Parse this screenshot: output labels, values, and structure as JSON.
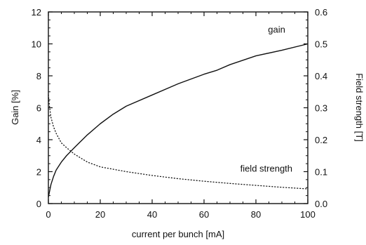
{
  "chart_data": {
    "type": "line",
    "title": "",
    "xlabel": "current per bunch [mA]",
    "ylabel_left": "Gain [%]",
    "ylabel_right": "Field strength [T]",
    "xlim": [
      0,
      100
    ],
    "ylim_left": [
      0,
      12
    ],
    "ylim_right": [
      0,
      0.6
    ],
    "grid": false,
    "x_ticks": [
      "0",
      "20",
      "40",
      "60",
      "80",
      "100"
    ],
    "y_ticks_left": [
      "0",
      "2",
      "4",
      "6",
      "8",
      "10",
      "12"
    ],
    "y_ticks_right": [
      "0.0",
      "0.1",
      "0.2",
      "0.3",
      "0.4",
      "0.5",
      "0.6"
    ],
    "series": [
      {
        "name": "gain",
        "axis": "left",
        "style": "solid",
        "x": [
          0,
          0.5,
          1,
          2,
          3,
          5,
          7,
          10,
          15,
          20,
          25,
          30,
          40,
          50,
          60,
          65,
          70,
          80,
          90,
          100
        ],
        "y": [
          0.4,
          0.8,
          1.2,
          1.7,
          2.1,
          2.6,
          3.0,
          3.5,
          4.3,
          5.0,
          5.6,
          6.1,
          6.8,
          7.5,
          8.1,
          8.35,
          8.7,
          9.25,
          9.6,
          10.0
        ]
      },
      {
        "name": "field strength",
        "axis": "right",
        "style": "dotted",
        "x": [
          0,
          0.5,
          1,
          2,
          3,
          5,
          7,
          10,
          15,
          20,
          30,
          40,
          50,
          60,
          70,
          80,
          90,
          100
        ],
        "y": [
          0.34,
          0.3,
          0.27,
          0.24,
          0.22,
          0.19,
          0.175,
          0.155,
          0.13,
          0.115,
          0.1,
          0.088,
          0.078,
          0.07,
          0.063,
          0.057,
          0.051,
          0.046
        ]
      }
    ],
    "annotations": [
      {
        "text": "gain",
        "x": 88,
        "y": 10.7
      },
      {
        "text": "field strength",
        "x": 84,
        "y": 2.0
      }
    ]
  }
}
